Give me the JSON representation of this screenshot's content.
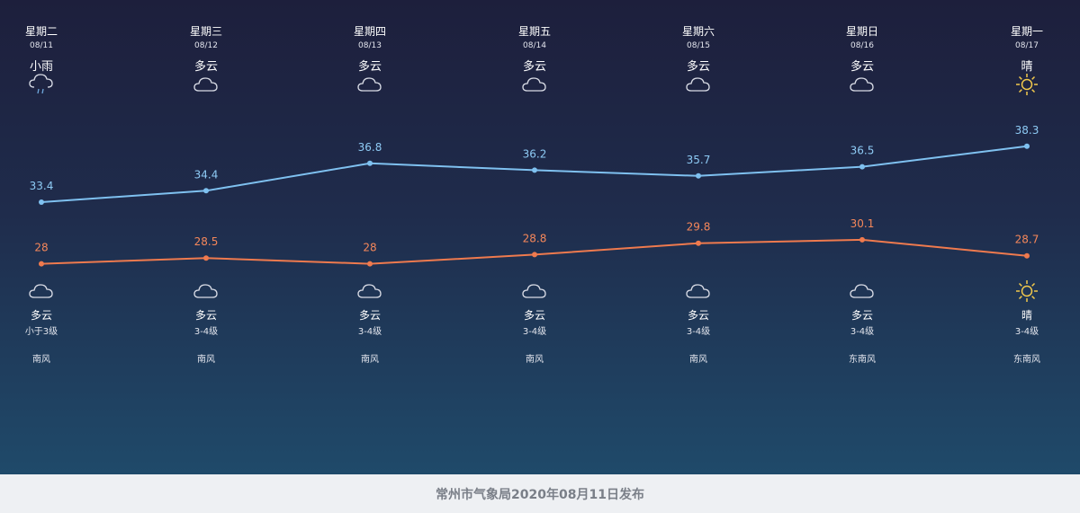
{
  "colors": {
    "high": "#7fc1f0",
    "low": "#ef7a4e",
    "sun": "#f2c94c",
    "cloud": "#d9dce6"
  },
  "footer": {
    "text": "常州市气象局2020年08月11日发布"
  },
  "days": [
    {
      "day": "星期二",
      "date": "08/11",
      "day_weather": "小雨",
      "day_icon": "rain-icon",
      "night_weather": "多云",
      "night_icon": "cloud-icon",
      "wind_level": "小于3级",
      "wind_dir": "南风"
    },
    {
      "day": "星期三",
      "date": "08/12",
      "day_weather": "多云",
      "day_icon": "cloud-icon",
      "night_weather": "多云",
      "night_icon": "cloud-icon",
      "wind_level": "3-4级",
      "wind_dir": "南风"
    },
    {
      "day": "星期四",
      "date": "08/13",
      "day_weather": "多云",
      "day_icon": "cloud-icon",
      "night_weather": "多云",
      "night_icon": "cloud-icon",
      "wind_level": "3-4级",
      "wind_dir": "南风"
    },
    {
      "day": "星期五",
      "date": "08/14",
      "day_weather": "多云",
      "day_icon": "cloud-icon",
      "night_weather": "多云",
      "night_icon": "cloud-icon",
      "wind_level": "3-4级",
      "wind_dir": "南风"
    },
    {
      "day": "星期六",
      "date": "08/15",
      "day_weather": "多云",
      "day_icon": "cloud-icon",
      "night_weather": "多云",
      "night_icon": "cloud-icon",
      "wind_level": "3-4级",
      "wind_dir": "南风"
    },
    {
      "day": "星期日",
      "date": "08/16",
      "day_weather": "多云",
      "day_icon": "cloud-icon",
      "night_weather": "多云",
      "night_icon": "cloud-icon",
      "wind_level": "3-4级",
      "wind_dir": "东南风"
    },
    {
      "day": "星期一",
      "date": "08/17",
      "day_weather": "晴",
      "day_icon": "sun-icon",
      "night_weather": "晴",
      "night_icon": "sun-icon",
      "wind_level": "3-4级",
      "wind_dir": "东南风"
    }
  ],
  "chart_data": {
    "type": "line",
    "categories": [
      "08/11",
      "08/12",
      "08/13",
      "08/14",
      "08/15",
      "08/16",
      "08/17"
    ],
    "series": [
      {
        "values": [
          33.4,
          34.4,
          36.8,
          36.2,
          35.7,
          36.5,
          38.3
        ],
        "labels": [
          "33.4",
          "34.4",
          "36.8",
          "36.2",
          "35.7",
          "36.5",
          "38.3"
        ]
      },
      {
        "values": [
          28,
          28.5,
          28,
          28.8,
          29.8,
          30.1,
          28.7
        ],
        "labels": [
          "28",
          "28.5",
          "28",
          "28.8",
          "29.8",
          "30.1",
          "28.7"
        ]
      }
    ],
    "legend": "none",
    "grid": false
  }
}
